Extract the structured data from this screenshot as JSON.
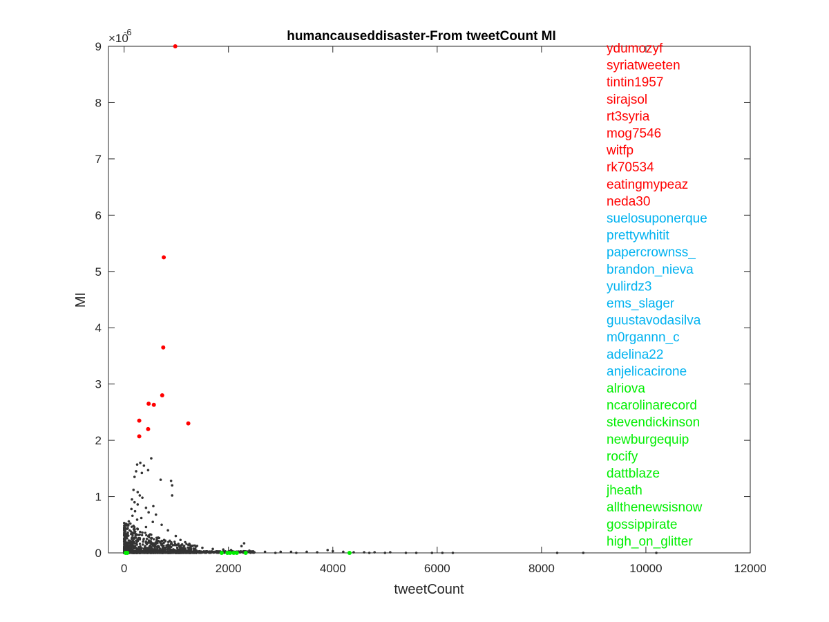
{
  "chart_data": {
    "type": "scatter",
    "title": "humancauseddisaster-From tweetCount MI",
    "xlabel": "tweetCount",
    "ylabel": "MI",
    "y_exponent": "×10",
    "y_exponent_power": "-6",
    "xlim": [
      -300,
      12000
    ],
    "ylim": [
      0,
      9
    ],
    "x_ticks": [
      "0",
      "2000",
      "4000",
      "6000",
      "8000",
      "10000",
      "12000"
    ],
    "x_tick_values": [
      0,
      2000,
      4000,
      6000,
      8000,
      10000,
      12000
    ],
    "y_ticks": [
      "0",
      "1",
      "2",
      "3",
      "4",
      "5",
      "6",
      "7",
      "8",
      "9"
    ],
    "y_tick_values": [
      0,
      1,
      2,
      3,
      4,
      5,
      6,
      7,
      8,
      9
    ],
    "grid": false,
    "series": [
      {
        "color": "#ff0000",
        "points": [
          [
            980,
            9.0
          ],
          [
            760,
            5.25
          ],
          [
            750,
            3.65
          ],
          [
            730,
            2.8
          ],
          [
            470,
            2.65
          ],
          [
            570,
            2.63
          ],
          [
            290,
            2.35
          ],
          [
            1230,
            2.3
          ],
          [
            460,
            2.2
          ],
          [
            290,
            2.07
          ]
        ]
      },
      {
        "color": "#00ee00",
        "points": [
          [
            30,
            0.0
          ],
          [
            60,
            0.0
          ],
          [
            1870,
            0.0
          ],
          [
            1980,
            0.0
          ],
          [
            2030,
            0.0
          ],
          [
            2100,
            0.0
          ],
          [
            2160,
            0.0
          ],
          [
            2330,
            0.0
          ],
          [
            4320,
            0.0
          ]
        ]
      },
      {
        "color": "#333333",
        "points": [
          [
            520,
            1.68
          ],
          [
            310,
            1.6
          ],
          [
            380,
            1.55
          ],
          [
            250,
            1.57
          ],
          [
            460,
            1.47
          ],
          [
            230,
            1.45
          ],
          [
            340,
            1.42
          ],
          [
            200,
            1.35
          ],
          [
            700,
            1.3
          ],
          [
            900,
            1.28
          ],
          [
            920,
            1.2
          ],
          [
            180,
            1.12
          ],
          [
            260,
            1.08
          ],
          [
            300,
            1.02
          ],
          [
            920,
            1.02
          ],
          [
            350,
            0.98
          ],
          [
            150,
            0.95
          ],
          [
            200,
            0.9
          ],
          [
            260,
            0.86
          ],
          [
            560,
            0.83
          ],
          [
            420,
            0.8
          ],
          [
            140,
            0.78
          ],
          [
            210,
            0.74
          ],
          [
            470,
            0.72
          ],
          [
            610,
            0.68
          ],
          [
            160,
            0.66
          ],
          [
            330,
            0.62
          ],
          [
            250,
            0.59
          ],
          [
            90,
            0.56
          ],
          [
            550,
            0.55
          ],
          [
            120,
            0.52
          ],
          [
            720,
            0.5
          ],
          [
            180,
            0.48
          ],
          [
            420,
            0.46
          ],
          [
            70,
            0.44
          ],
          [
            260,
            0.42
          ],
          [
            840,
            0.4
          ],
          [
            130,
            0.38
          ],
          [
            350,
            0.36
          ],
          [
            60,
            0.34
          ],
          [
            500,
            0.33
          ],
          [
            220,
            0.31
          ],
          [
            990,
            0.3
          ],
          [
            40,
            0.29
          ],
          [
            150,
            0.27
          ],
          [
            640,
            0.26
          ],
          [
            300,
            0.24
          ],
          [
            1080,
            0.23
          ],
          [
            90,
            0.22
          ],
          [
            420,
            0.2
          ],
          [
            1170,
            0.19
          ],
          [
            760,
            0.18
          ],
          [
            200,
            0.17
          ],
          [
            1250,
            0.16
          ],
          [
            40,
            0.15
          ],
          [
            560,
            0.14
          ],
          [
            1300,
            0.12
          ],
          [
            110,
            0.11
          ],
          [
            880,
            0.1
          ],
          [
            1500,
            0.09
          ],
          [
            310,
            0.08
          ],
          [
            1700,
            0.07
          ],
          [
            2300,
            0.17
          ],
          [
            2250,
            0.12
          ],
          [
            1900,
            0.06
          ],
          [
            2050,
            0.05
          ],
          [
            2400,
            0.04
          ],
          [
            2700,
            0.02
          ],
          [
            3000,
            0.02
          ],
          [
            3200,
            0.02
          ],
          [
            3500,
            0.02
          ],
          [
            3700,
            0.01
          ],
          [
            3900,
            0.05
          ],
          [
            4000,
            0.03
          ],
          [
            4200,
            0.02
          ],
          [
            4400,
            0.01
          ],
          [
            4600,
            0.01
          ],
          [
            4800,
            0.01
          ],
          [
            5100,
            0.01
          ],
          [
            5400,
            0.0
          ],
          [
            5600,
            0.0
          ],
          [
            5900,
            0.0
          ],
          [
            6100,
            0.0
          ],
          [
            6300,
            0.0
          ],
          [
            8300,
            0.0
          ],
          [
            8800,
            0.0
          ],
          [
            10200,
            0.0
          ],
          [
            5000,
            0.0
          ],
          [
            4700,
            0.0
          ],
          [
            3300,
            0.0
          ],
          [
            2900,
            0.0
          ]
        ]
      }
    ],
    "labels": [
      {
        "text": "ydumozyf",
        "color": "#ff0000"
      },
      {
        "text": "syriatweeten",
        "color": "#ff0000"
      },
      {
        "text": "tintin1957",
        "color": "#ff0000"
      },
      {
        "text": "sirajsol",
        "color": "#ff0000"
      },
      {
        "text": "rt3syria",
        "color": "#ff0000"
      },
      {
        "text": "mog7546",
        "color": "#ff0000"
      },
      {
        "text": "witfp",
        "color": "#ff0000"
      },
      {
        "text": "rk70534",
        "color": "#ff0000"
      },
      {
        "text": "eatingmypeaz",
        "color": "#ff0000"
      },
      {
        "text": "neda30",
        "color": "#ff0000"
      },
      {
        "text": "suelosuponerque",
        "color": "#00b2f0"
      },
      {
        "text": "prettywhitit",
        "color": "#00b2f0"
      },
      {
        "text": "papercrownss_",
        "color": "#00b2f0"
      },
      {
        "text": "brandon_nieva",
        "color": "#00b2f0"
      },
      {
        "text": "yulirdz3",
        "color": "#00b2f0"
      },
      {
        "text": "ems_slager",
        "color": "#00b2f0"
      },
      {
        "text": "guustavodasilva",
        "color": "#00b2f0"
      },
      {
        "text": "m0rgannn_c",
        "color": "#00b2f0"
      },
      {
        "text": "adelina22",
        "color": "#00b2f0"
      },
      {
        "text": "anjelicacirone",
        "color": "#00b2f0"
      },
      {
        "text": "alriova",
        "color": "#00ee00"
      },
      {
        "text": "ncarolinarecord",
        "color": "#00ee00"
      },
      {
        "text": "stevendickinson",
        "color": "#00ee00"
      },
      {
        "text": "newburgequip",
        "color": "#00ee00"
      },
      {
        "text": "rocify",
        "color": "#00ee00"
      },
      {
        "text": "dattblaze",
        "color": "#00ee00"
      },
      {
        "text": "jheath",
        "color": "#00ee00"
      },
      {
        "text": "allthenewsisnow",
        "color": "#00ee00"
      },
      {
        "text": "gossippirate",
        "color": "#00ee00"
      },
      {
        "text": "high_on_glitter",
        "color": "#00ee00"
      }
    ]
  }
}
